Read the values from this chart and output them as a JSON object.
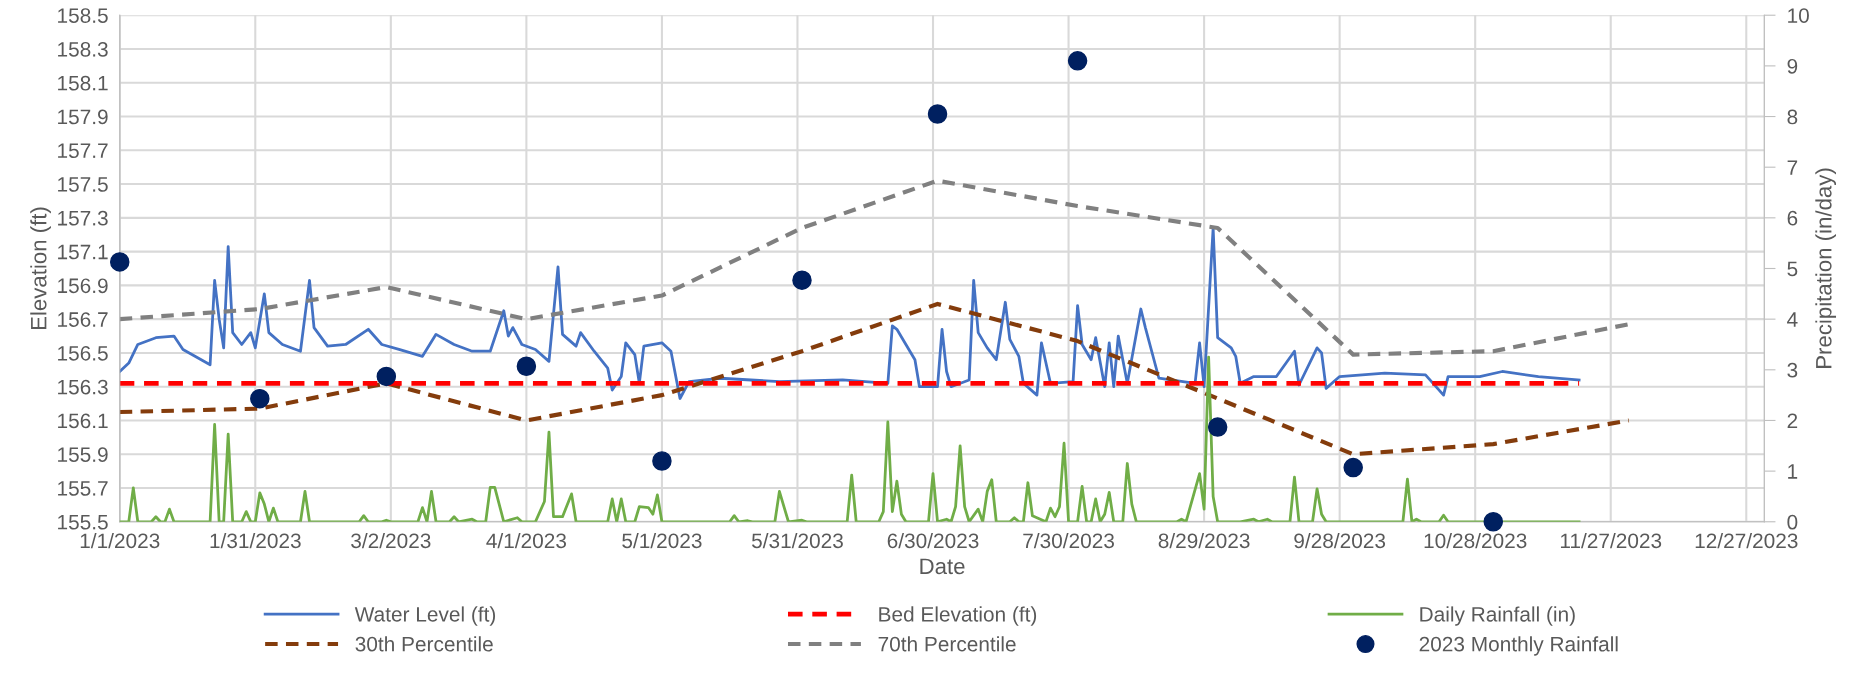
{
  "chart_data": {
    "type": "line",
    "xlabel": "Date",
    "ylabel": "Elevation (ft)",
    "y2label": "Precipitation (in/day)",
    "xlim": [
      "2023-01-01",
      "2023-12-31"
    ],
    "xticks": [
      {
        "value": "2023-01-01",
        "label": "1/1/2023"
      },
      {
        "value": "2023-01-31",
        "label": "1/31/2023"
      },
      {
        "value": "2023-03-02",
        "label": "3/2/2023"
      },
      {
        "value": "2023-04-01",
        "label": "4/1/2023"
      },
      {
        "value": "2023-05-01",
        "label": "5/1/2023"
      },
      {
        "value": "2023-05-31",
        "label": "5/31/2023"
      },
      {
        "value": "2023-06-30",
        "label": "6/30/2023"
      },
      {
        "value": "2023-07-30",
        "label": "7/30/2023"
      },
      {
        "value": "2023-08-29",
        "label": "8/29/2023"
      },
      {
        "value": "2023-09-28",
        "label": "9/28/2023"
      },
      {
        "value": "2023-10-28",
        "label": "10/28/2023"
      },
      {
        "value": "2023-11-27",
        "label": "11/27/2023"
      },
      {
        "value": "2023-12-27",
        "label": "12/27/2023"
      }
    ],
    "ylim": [
      155.5,
      158.5
    ],
    "yticks": [
      155.5,
      155.7,
      155.9,
      156.1,
      156.3,
      156.5,
      156.7,
      156.9,
      157.1,
      157.3,
      157.5,
      157.7,
      157.9,
      158.1,
      158.3,
      158.5
    ],
    "y2lim": [
      0,
      10
    ],
    "y2ticks": [
      0,
      1,
      2,
      3,
      4,
      5,
      6,
      7,
      8,
      9,
      10
    ],
    "grid": true,
    "legend": "bottom",
    "series": [
      {
        "name": "Water Level (ft)",
        "color": "#4472c4",
        "line_style": "solid",
        "x": [
          "2023-01-01",
          "2023-01-03",
          "2023-01-05",
          "2023-01-09",
          "2023-01-13",
          "2023-01-15",
          "2023-01-21",
          "2023-01-22",
          "2023-01-23",
          "2023-01-24",
          "2023-01-25",
          "2023-01-26",
          "2023-01-28",
          "2023-01-30",
          "2023-01-31",
          "2023-02-02",
          "2023-02-03",
          "2023-02-06",
          "2023-02-10",
          "2023-02-12",
          "2023-02-13",
          "2023-02-16",
          "2023-02-20",
          "2023-02-25",
          "2023-02-28",
          "2023-03-04",
          "2023-03-09",
          "2023-03-12",
          "2023-03-16",
          "2023-03-20",
          "2023-03-24",
          "2023-03-27",
          "2023-03-28",
          "2023-03-29",
          "2023-03-31",
          "2023-04-03",
          "2023-04-06",
          "2023-04-08",
          "2023-04-09",
          "2023-04-12",
          "2023-04-13",
          "2023-04-16",
          "2023-04-19",
          "2023-04-20",
          "2023-04-22",
          "2023-04-23",
          "2023-04-25",
          "2023-04-26",
          "2023-04-27",
          "2023-05-01",
          "2023-05-03",
          "2023-05-05",
          "2023-05-07",
          "2023-05-14",
          "2023-05-27",
          "2023-06-10",
          "2023-06-20",
          "2023-06-21",
          "2023-06-22",
          "2023-06-24",
          "2023-06-26",
          "2023-06-27",
          "2023-07-01",
          "2023-07-02",
          "2023-07-03",
          "2023-07-04",
          "2023-07-08",
          "2023-07-09",
          "2023-07-10",
          "2023-07-12",
          "2023-07-14",
          "2023-07-16",
          "2023-07-17",
          "2023-07-19",
          "2023-07-20",
          "2023-07-23",
          "2023-07-24",
          "2023-07-26",
          "2023-07-31",
          "2023-08-01",
          "2023-08-02",
          "2023-08-04",
          "2023-08-05",
          "2023-08-07",
          "2023-08-08",
          "2023-08-09",
          "2023-08-10",
          "2023-08-12",
          "2023-08-15",
          "2023-08-16",
          "2023-08-19",
          "2023-08-27",
          "2023-08-28",
          "2023-08-29",
          "2023-08-31",
          "2023-09-01",
          "2023-09-04",
          "2023-09-05",
          "2023-09-06",
          "2023-09-09",
          "2023-09-14",
          "2023-09-18",
          "2023-09-19",
          "2023-09-23",
          "2023-09-24",
          "2023-09-25",
          "2023-09-28",
          "2023-10-08",
          "2023-10-17",
          "2023-10-21",
          "2023-10-22",
          "2023-10-29",
          "2023-11-03",
          "2023-11-11",
          "2023-11-20"
        ],
        "values": [
          156.39,
          156.44,
          156.55,
          156.59,
          156.6,
          156.52,
          156.43,
          156.93,
          156.7,
          156.53,
          157.13,
          156.62,
          156.55,
          156.62,
          156.53,
          156.85,
          156.62,
          156.55,
          156.51,
          156.93,
          156.65,
          156.54,
          156.55,
          156.64,
          156.55,
          156.52,
          156.48,
          156.61,
          156.55,
          156.51,
          156.51,
          156.75,
          156.6,
          156.65,
          156.55,
          156.52,
          156.45,
          157.01,
          156.61,
          156.54,
          156.62,
          156.51,
          156.41,
          156.28,
          156.36,
          156.56,
          156.49,
          156.32,
          156.54,
          156.56,
          156.51,
          156.23,
          156.33,
          156.35,
          156.33,
          156.34,
          156.32,
          156.66,
          156.64,
          156.55,
          156.46,
          156.3,
          156.3,
          156.64,
          156.39,
          156.3,
          156.34,
          156.93,
          156.62,
          156.53,
          156.46,
          156.8,
          156.58,
          156.48,
          156.32,
          156.25,
          156.56,
          156.32,
          156.33,
          156.78,
          156.55,
          156.46,
          156.59,
          156.3,
          156.56,
          156.3,
          156.6,
          156.32,
          156.76,
          156.65,
          156.35,
          156.32,
          156.56,
          156.3,
          157.24,
          156.59,
          156.53,
          156.48,
          156.32,
          156.36,
          156.36,
          156.51,
          156.31,
          156.53,
          156.5,
          156.29,
          156.36,
          156.38,
          156.37,
          156.25,
          156.36,
          156.36,
          156.39,
          156.36,
          156.34
        ]
      },
      {
        "name": "30th Percentile",
        "color": "#843c0c",
        "line_style": "dashed",
        "x": [
          "2023-01-01",
          "2023-02-01",
          "2023-03-01",
          "2023-04-01",
          "2023-05-01",
          "2023-06-01",
          "2023-07-01",
          "2023-08-01",
          "2023-09-01",
          "2023-10-01",
          "2023-11-01",
          "2023-12-01"
        ],
        "values": [
          156.15,
          156.17,
          156.32,
          156.1,
          156.25,
          156.51,
          156.79,
          156.57,
          156.23,
          155.9,
          155.96,
          156.1
        ]
      },
      {
        "name": "Bed Elevation (ft)",
        "color": "#ff0000",
        "line_style": "dashed",
        "x": [
          "2023-01-01",
          "2023-11-20"
        ],
        "values": [
          156.32,
          156.32
        ]
      },
      {
        "name": "70th Percentile",
        "color": "#808080",
        "line_style": "dashed",
        "x": [
          "2023-01-01",
          "2023-02-01",
          "2023-03-01",
          "2023-04-01",
          "2023-05-01",
          "2023-06-01",
          "2023-07-01",
          "2023-08-01",
          "2023-09-01",
          "2023-10-01",
          "2023-11-01",
          "2023-12-01"
        ],
        "values": [
          156.7,
          156.76,
          156.89,
          156.7,
          156.84,
          157.24,
          157.52,
          157.37,
          157.24,
          156.49,
          156.51,
          156.67
        ]
      },
      {
        "name": "Daily Rainfall (in)",
        "axis": "y2",
        "color": "#70ad47",
        "line_style": "solid",
        "x": [
          "2023-01-01",
          "2023-01-03",
          "2023-01-04",
          "2023-01-05",
          "2023-01-08",
          "2023-01-09",
          "2023-01-10",
          "2023-01-11",
          "2023-01-12",
          "2023-01-13",
          "2023-01-21",
          "2023-01-22",
          "2023-01-23",
          "2023-01-24",
          "2023-01-25",
          "2023-01-26",
          "2023-01-28",
          "2023-01-29",
          "2023-01-30",
          "2023-01-31",
          "2023-02-01",
          "2023-02-02",
          "2023-02-03",
          "2023-02-04",
          "2023-02-05",
          "2023-02-10",
          "2023-02-11",
          "2023-02-12",
          "2023-02-23",
          "2023-02-24",
          "2023-02-25",
          "2023-02-28",
          "2023-03-01",
          "2023-03-02",
          "2023-03-08",
          "2023-03-09",
          "2023-03-10",
          "2023-03-11",
          "2023-03-12",
          "2023-03-15",
          "2023-03-16",
          "2023-03-17",
          "2023-03-20",
          "2023-03-21",
          "2023-03-23",
          "2023-03-24",
          "2023-03-25",
          "2023-03-27",
          "2023-03-30",
          "2023-03-31",
          "2023-04-03",
          "2023-04-05",
          "2023-04-06",
          "2023-04-07",
          "2023-04-09",
          "2023-04-11",
          "2023-04-12",
          "2023-04-19",
          "2023-04-20",
          "2023-04-21",
          "2023-04-22",
          "2023-04-23",
          "2023-04-25",
          "2023-04-26",
          "2023-04-28",
          "2023-04-29",
          "2023-04-30",
          "2023-05-01",
          "2023-05-16",
          "2023-05-17",
          "2023-05-18",
          "2023-05-20",
          "2023-05-21",
          "2023-05-26",
          "2023-05-27",
          "2023-05-29",
          "2023-06-01",
          "2023-06-02",
          "2023-06-11",
          "2023-06-12",
          "2023-06-13",
          "2023-06-18",
          "2023-06-19",
          "2023-06-20",
          "2023-06-21",
          "2023-06-22",
          "2023-06-23",
          "2023-06-24",
          "2023-06-29",
          "2023-06-30",
          "2023-07-01",
          "2023-07-03",
          "2023-07-04",
          "2023-07-05",
          "2023-07-06",
          "2023-07-07",
          "2023-07-08",
          "2023-07-10",
          "2023-07-11",
          "2023-07-12",
          "2023-07-13",
          "2023-07-14",
          "2023-07-17",
          "2023-07-18",
          "2023-07-19",
          "2023-07-20",
          "2023-07-21",
          "2023-07-22",
          "2023-07-25",
          "2023-07-26",
          "2023-07-27",
          "2023-07-28",
          "2023-07-29",
          "2023-07-30",
          "2023-08-01",
          "2023-08-02",
          "2023-08-03",
          "2023-08-04",
          "2023-08-05",
          "2023-08-06",
          "2023-08-07",
          "2023-08-08",
          "2023-08-09",
          "2023-08-11",
          "2023-08-12",
          "2023-08-13",
          "2023-08-14",
          "2023-08-23",
          "2023-08-24",
          "2023-08-25",
          "2023-08-28",
          "2023-08-29",
          "2023-08-30",
          "2023-08-31",
          "2023-09-01",
          "2023-09-06",
          "2023-09-09",
          "2023-09-10",
          "2023-09-12",
          "2023-09-13",
          "2023-09-17",
          "2023-09-18",
          "2023-09-19",
          "2023-09-22",
          "2023-09-23",
          "2023-09-24",
          "2023-09-25",
          "2023-10-12",
          "2023-10-13",
          "2023-10-14",
          "2023-10-15",
          "2023-10-16",
          "2023-10-20",
          "2023-10-21",
          "2023-10-22",
          "2023-11-20"
        ],
        "values": [
          0,
          0,
          0.67,
          0,
          0,
          0.1,
          0,
          0,
          0.25,
          0,
          0,
          1.92,
          0,
          0,
          1.73,
          0,
          0,
          0.2,
          0,
          0,
          0.57,
          0.35,
          0,
          0.27,
          0,
          0,
          0.6,
          0,
          0,
          0.12,
          0,
          0,
          0.03,
          0,
          0,
          0.28,
          0,
          0.6,
          0,
          0,
          0.1,
          0,
          0.05,
          0,
          0,
          0.68,
          0.68,
          0,
          0.08,
          0,
          0,
          0.4,
          1.77,
          0.1,
          0.1,
          0.55,
          0,
          0,
          0.45,
          0,
          0.45,
          0,
          0,
          0.3,
          0.28,
          0.15,
          0.53,
          0,
          0,
          0.12,
          0,
          0.02,
          0,
          0,
          0.6,
          0,
          0.03,
          0,
          0,
          0.92,
          0,
          0,
          0.2,
          1.97,
          0.2,
          0.8,
          0.15,
          0,
          0,
          0.95,
          0,
          0.05,
          0,
          0.3,
          1.5,
          0.3,
          0,
          0.25,
          0,
          0.6,
          0.83,
          0,
          0,
          0.08,
          0,
          0,
          0.77,
          0.12,
          0,
          0.27,
          0.1,
          0.3,
          1.55,
          0,
          0,
          0.7,
          0,
          0,
          0.45,
          0,
          0.15,
          0.58,
          0,
          0,
          1.15,
          0.35,
          0,
          0,
          0.05,
          0,
          0.95,
          0.25,
          3.25,
          0.5,
          0,
          0,
          0.05,
          0,
          0.05,
          0,
          0,
          0.88,
          0,
          0,
          0.65,
          0.15,
          0,
          0,
          0.84,
          0,
          0.05,
          0,
          0,
          0.13,
          0,
          0
        ]
      },
      {
        "name": "2023 Monthly Rainfall",
        "type": "scatter",
        "axis": "y2",
        "color": "#002060",
        "marker": "circle",
        "x": [
          "2023-01-01",
          "2023-02-01",
          "2023-03-01",
          "2023-04-01",
          "2023-05-01",
          "2023-06-01",
          "2023-07-01",
          "2023-08-01",
          "2023-09-01",
          "2023-10-01",
          "2023-11-01"
        ],
        "values": [
          5.13,
          2.43,
          2.87,
          3.07,
          1.2,
          4.77,
          8.05,
          9.1,
          1.87,
          1.07,
          0
        ]
      }
    ]
  }
}
